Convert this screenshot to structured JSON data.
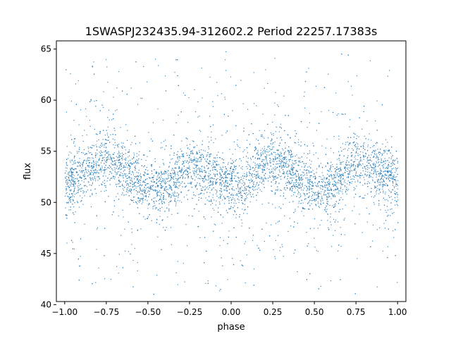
{
  "chart_data": {
    "type": "scatter",
    "title": "1SWASPJ232435.94-312602.2 Period 22257.17383s",
    "xlabel": "phase",
    "ylabel": "flux",
    "xlim": [
      -1.05,
      1.05
    ],
    "ylim": [
      40.3,
      65.8
    ],
    "xticks": [
      -1.0,
      -0.75,
      -0.5,
      -0.25,
      0.0,
      0.25,
      0.5,
      0.75,
      1.0
    ],
    "xtick_labels": [
      "−1.00",
      "−0.75",
      "−0.50",
      "−0.25",
      "0.00",
      "0.25",
      "0.50",
      "0.75",
      "1.00"
    ],
    "yticks": [
      40,
      45,
      50,
      55,
      60,
      65
    ],
    "ytick_labels": [
      "40",
      "45",
      "50",
      "55",
      "60",
      "65"
    ],
    "grid": false,
    "marker_color": "#1f77b4",
    "series": [
      {
        "x": [
          -1.0,
          -0.9,
          -0.8,
          -0.75,
          -0.7,
          -0.6,
          -0.5,
          -0.45,
          -0.4,
          -0.3,
          -0.25,
          -0.2,
          -0.1,
          0.0,
          0.05,
          0.1,
          0.2,
          0.25,
          0.3,
          0.4,
          0.5,
          0.55,
          0.6,
          0.7,
          0.75,
          0.8,
          0.9,
          1.0
        ],
        "values": [
          51.8,
          52.8,
          54.0,
          54.3,
          54.0,
          52.5,
          51.3,
          51.2,
          51.5,
          53.0,
          53.6,
          53.4,
          52.3,
          51.5,
          51.6,
          52.2,
          53.8,
          54.2,
          54.0,
          52.4,
          51.2,
          51.1,
          51.6,
          53.3,
          54.0,
          53.9,
          53.0,
          52.0
        ]
      }
    ],
    "band_halfwidth": 2.5,
    "range_min": 41.0,
    "range_max": 64.8
  }
}
